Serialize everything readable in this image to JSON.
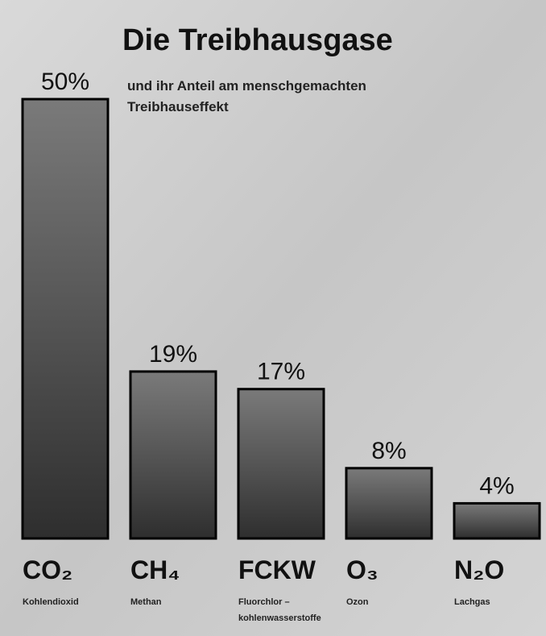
{
  "chart_data": {
    "type": "bar",
    "title": "Die Treibhausgase",
    "subtitle": [
      "und ihr Anteil am menschgemachten",
      "Treibhauseffekt"
    ],
    "categories": [
      "CO₂",
      "CH₄",
      "FCKW",
      "O₃",
      "N₂O"
    ],
    "descriptions": [
      [
        "Kohlendioxid"
      ],
      [
        "Methan"
      ],
      [
        "Fluorchlor –",
        "kohlenwasserstoffe"
      ],
      [
        "Ozon"
      ],
      [
        "Lachgas"
      ]
    ],
    "values": [
      50,
      19,
      17,
      8,
      4
    ],
    "value_labels": [
      "50%",
      "19%",
      "17%",
      "8%",
      "4%"
    ],
    "color": "#3a3a3a"
  }
}
